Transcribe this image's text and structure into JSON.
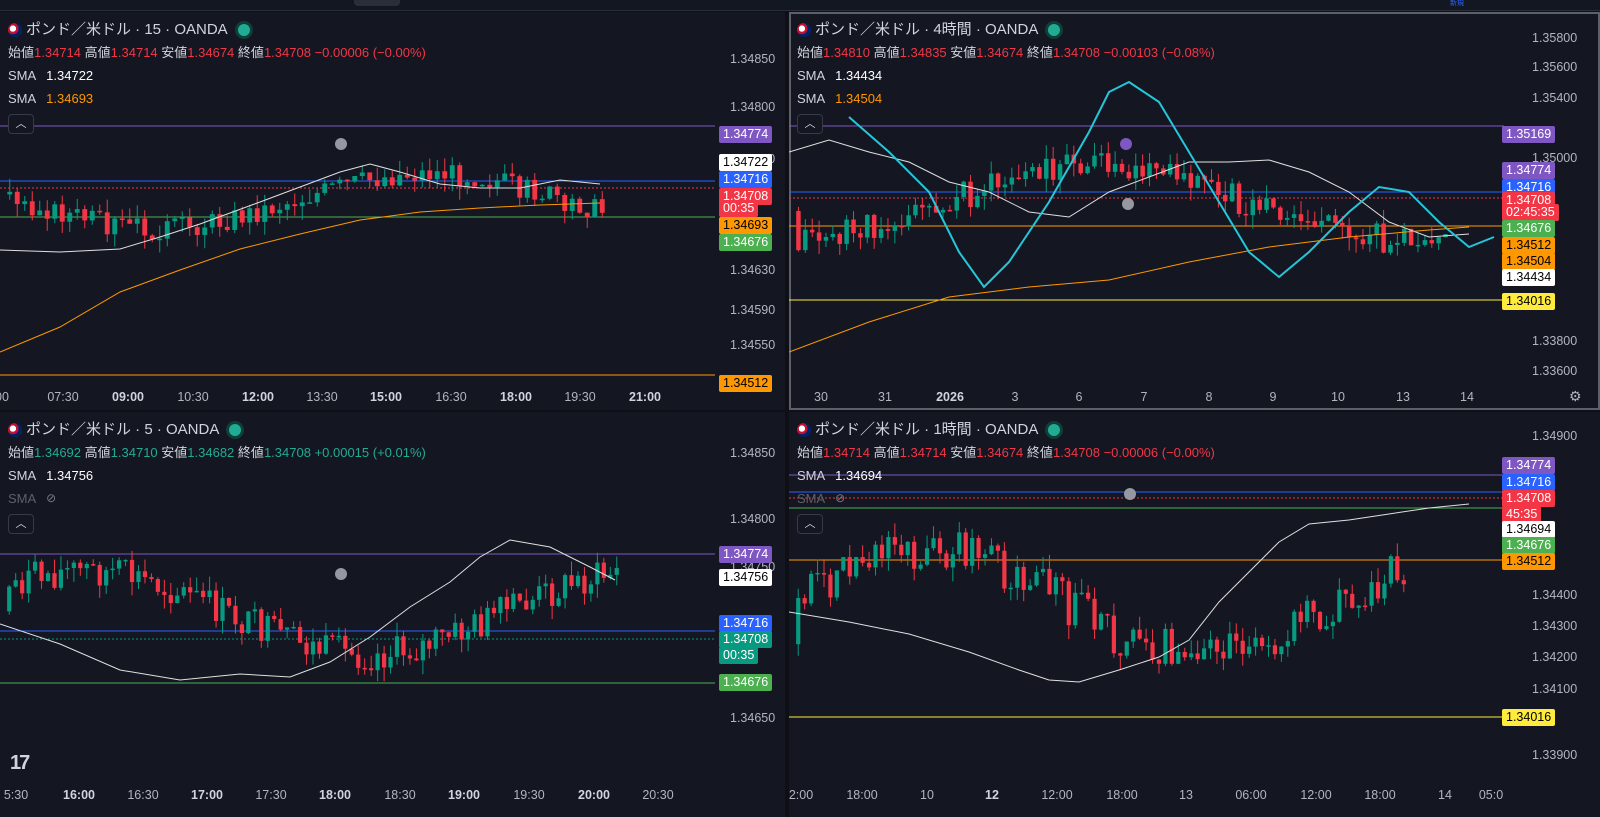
{
  "toolbar": {
    "tag": "新規"
  },
  "panes": [
    {
      "title": "ポンド／米ドル · 15 · OANDA",
      "ohlc": {
        "open_label": "始値",
        "open": "1.34714",
        "high_label": "高値",
        "high": "1.34714",
        "low_label": "安値",
        "low": "1.34674",
        "close_label": "終値",
        "close": "1.34708",
        "change": "−0.00006 (−0.00%)"
      },
      "sma": [
        {
          "label": "SMA",
          "value": "1.34722"
        },
        {
          "label": "SMA",
          "value": "1.34693"
        }
      ],
      "price_axis": [
        "1.34850",
        "1.34800",
        "1.34750",
        "1.34630",
        "1.34590",
        "1.34550"
      ],
      "badges": [
        {
          "text": "1.34774",
          "bg": "#7e57c2",
          "fg": "#ffffff"
        },
        {
          "text": "1.34722",
          "bg": "#ffffff",
          "fg": "#000000"
        },
        {
          "text": "1.34716",
          "bg": "#2962ff",
          "fg": "#ffffff"
        },
        {
          "text": "1.34708",
          "bg": "#f23645",
          "fg": "#ffffff"
        },
        {
          "text": "00:35",
          "bg": "#f23645",
          "fg": "#ffffff"
        },
        {
          "text": "1.34693",
          "bg": "#ff9800",
          "fg": "#000000"
        },
        {
          "text": "1.34676",
          "bg": "#4caf50",
          "fg": "#ffffff"
        },
        {
          "text": "1.34512",
          "bg": "#ff9800",
          "fg": "#000000"
        }
      ],
      "time_axis": [
        "00",
        "07:30",
        "09:00",
        "10:30",
        "12:00",
        "13:30",
        "15:00",
        "16:30",
        "18:00",
        "19:30",
        "21:00"
      ]
    },
    {
      "title": "ポンド／米ドル · 4時間 · OANDA",
      "ohlc": {
        "open_label": "始値",
        "open": "1.34810",
        "high_label": "高値",
        "high": "1.34835",
        "low_label": "安値",
        "low": "1.34674",
        "close_label": "終値",
        "close": "1.34708",
        "change": "−0.00103 (−0.08%)"
      },
      "sma": [
        {
          "label": "SMA",
          "value": "1.34434"
        },
        {
          "label": "SMA",
          "value": "1.34504"
        }
      ],
      "price_axis": [
        "1.35800",
        "1.35600",
        "1.35400",
        "1.35000",
        "1.33800",
        "1.33600"
      ],
      "badges": [
        {
          "text": "1.35169",
          "bg": "#7e57c2",
          "fg": "#ffffff"
        },
        {
          "text": "1.34774",
          "bg": "#7e57c2",
          "fg": "#ffffff"
        },
        {
          "text": "1.34716",
          "bg": "#2962ff",
          "fg": "#ffffff"
        },
        {
          "text": "1.34708",
          "bg": "#f23645",
          "fg": "#ffffff"
        },
        {
          "text": "02:45:35",
          "bg": "#f23645",
          "fg": "#ffffff"
        },
        {
          "text": "1.34676",
          "bg": "#4caf50",
          "fg": "#ffffff"
        },
        {
          "text": "1.34512",
          "bg": "#ff9800",
          "fg": "#000000"
        },
        {
          "text": "1.34504",
          "bg": "#ff9800",
          "fg": "#000000"
        },
        {
          "text": "1.34434",
          "bg": "#ffffff",
          "fg": "#000000"
        },
        {
          "text": "1.34016",
          "bg": "#ffeb3b",
          "fg": "#000000"
        }
      ],
      "time_axis": [
        "30",
        "31",
        "2026",
        "3",
        "6",
        "7",
        "8",
        "9",
        "10",
        "13",
        "14"
      ]
    },
    {
      "title": "ポンド／米ドル · 5 · OANDA",
      "ohlc": {
        "open_label": "始値",
        "open": "1.34692",
        "high_label": "高値",
        "high": "1.34710",
        "low_label": "安値",
        "low": "1.34682",
        "close_label": "終値",
        "close": "1.34708",
        "change": "+0.00015 (+0.01%)"
      },
      "sma": [
        {
          "label": "SMA",
          "value": "1.34756"
        },
        {
          "label": "SMA",
          "value": ""
        }
      ],
      "price_axis": [
        "1.34850",
        "1.34800",
        "1.34750",
        "1.34650"
      ],
      "badges": [
        {
          "text": "1.34774",
          "bg": "#7e57c2",
          "fg": "#ffffff"
        },
        {
          "text": "1.34756",
          "bg": "#ffffff",
          "fg": "#000000"
        },
        {
          "text": "1.34716",
          "bg": "#2962ff",
          "fg": "#ffffff"
        },
        {
          "text": "1.34708",
          "bg": "#089981",
          "fg": "#ffffff"
        },
        {
          "text": "00:35",
          "bg": "#089981",
          "fg": "#ffffff"
        },
        {
          "text": "1.34676",
          "bg": "#4caf50",
          "fg": "#ffffff"
        }
      ],
      "time_axis": [
        "5:30",
        "16:00",
        "16:30",
        "17:00",
        "17:30",
        "18:00",
        "18:30",
        "19:00",
        "19:30",
        "20:00",
        "20:30"
      ]
    },
    {
      "title": "ポンド／米ドル · 1時間 · OANDA",
      "ohlc": {
        "open_label": "始値",
        "open": "1.34714",
        "high_label": "高値",
        "high": "1.34714",
        "low_label": "安値",
        "low": "1.34674",
        "close_label": "終値",
        "close": "1.34708",
        "change": "−0.00006 (−0.00%)"
      },
      "sma": [
        {
          "label": "SMA",
          "value": "1.34694"
        },
        {
          "label": "SMA",
          "value": ""
        }
      ],
      "price_axis": [
        "1.34900",
        "1.34400",
        "1.34300",
        "1.34200",
        "1.34100",
        "1.33900"
      ],
      "badges": [
        {
          "text": "1.34774",
          "bg": "#7e57c2",
          "fg": "#ffffff"
        },
        {
          "text": "1.34716",
          "bg": "#2962ff",
          "fg": "#ffffff"
        },
        {
          "text": "1.34708",
          "bg": "#f23645",
          "fg": "#ffffff"
        },
        {
          "text": "45:35",
          "bg": "#f23645",
          "fg": "#ffffff"
        },
        {
          "text": "1.34694",
          "bg": "#ffffff",
          "fg": "#000000"
        },
        {
          "text": "1.34676",
          "bg": "#4caf50",
          "fg": "#ffffff"
        },
        {
          "text": "1.34512",
          "bg": "#ff9800",
          "fg": "#000000"
        },
        {
          "text": "1.34016",
          "bg": "#ffeb3b",
          "fg": "#000000"
        }
      ],
      "time_axis": [
        "2:00",
        "18:00",
        "10",
        "12",
        "12:00",
        "18:00",
        "13",
        "06:00",
        "12:00",
        "18:00",
        "14",
        "05:0"
      ]
    }
  ]
}
